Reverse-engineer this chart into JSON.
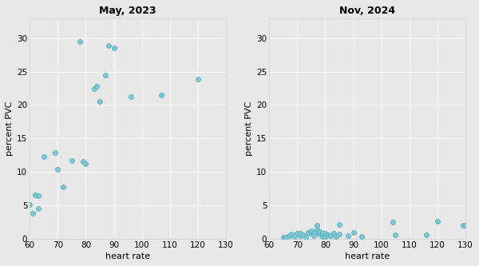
{
  "title_left": "May, 2023",
  "title_right": "Nov, 2024",
  "xlabel": "heart rate",
  "ylabel": "percent PVC",
  "xlim": [
    60,
    130
  ],
  "ylim": [
    0,
    33
  ],
  "xticks": [
    60,
    70,
    80,
    90,
    100,
    110,
    120,
    130
  ],
  "yticks": [
    0,
    5,
    10,
    15,
    20,
    25,
    30
  ],
  "left_x": [
    60,
    61,
    62,
    63,
    63,
    65,
    69,
    70,
    72,
    75,
    78,
    79,
    80,
    83,
    84,
    85,
    87,
    88,
    90,
    96,
    107,
    120
  ],
  "left_y": [
    5.1,
    3.8,
    6.6,
    6.5,
    4.5,
    12.3,
    12.9,
    10.4,
    7.8,
    11.7,
    29.5,
    11.6,
    11.2,
    22.5,
    22.8,
    20.5,
    24.5,
    28.9,
    28.5,
    21.3,
    21.5,
    23.9
  ],
  "right_x": [
    65,
    66,
    67,
    68,
    69,
    70,
    71,
    71,
    72,
    73,
    74,
    75,
    75,
    76,
    76,
    77,
    77,
    78,
    78,
    79,
    79,
    80,
    80,
    81,
    82,
    83,
    84,
    85,
    85,
    88,
    90,
    93,
    104,
    105,
    116,
    120,
    129,
    130
  ],
  "right_y": [
    0.3,
    0.2,
    0.5,
    0.7,
    0.4,
    0.8,
    0.5,
    0.9,
    0.6,
    0.3,
    1.0,
    0.8,
    1.2,
    0.9,
    0.5,
    1.5,
    2.1,
    0.7,
    1.1,
    0.4,
    0.8,
    0.9,
    0.3,
    0.6,
    0.5,
    0.8,
    0.4,
    2.2,
    0.7,
    0.5,
    1.0,
    0.4,
    2.5,
    0.6,
    0.6,
    2.6,
    2.1,
    2.1
  ],
  "dot_color": "#7ec8d4",
  "dot_edge_color": "#5aafc0",
  "plot_bg_color": "#e8e8e8",
  "fig_bg_color": "#e8e8e8",
  "grid_color": "#ffffff",
  "dot_size": 18,
  "dot_linewidth": 0.6,
  "title_fontsize": 9,
  "label_fontsize": 8,
  "tick_fontsize": 7.5
}
